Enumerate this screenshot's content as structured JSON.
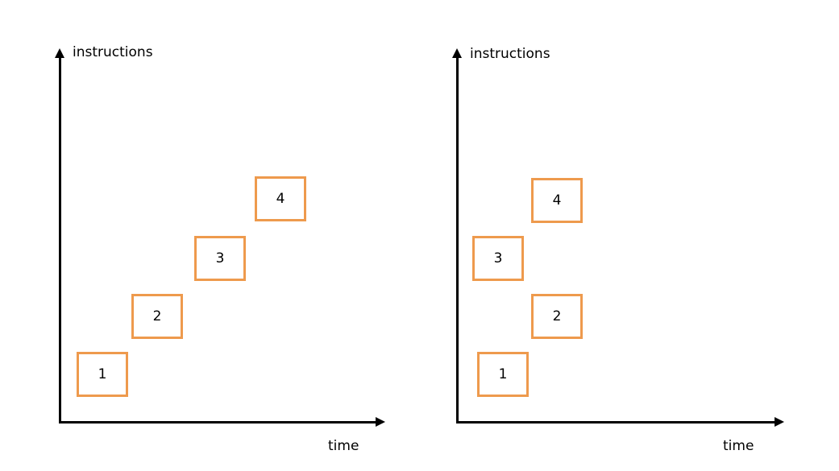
{
  "box_color": "#ee9a4d",
  "axis_color": "#000000",
  "left_diagram": {
    "y_axis_label": "instructions",
    "x_axis_label": "time",
    "boxes": [
      "1",
      "2",
      "3",
      "4"
    ]
  },
  "right_diagram": {
    "y_axis_label": "instructions",
    "x_axis_label": "time",
    "boxes": [
      "1",
      "2",
      "3",
      "4"
    ]
  }
}
